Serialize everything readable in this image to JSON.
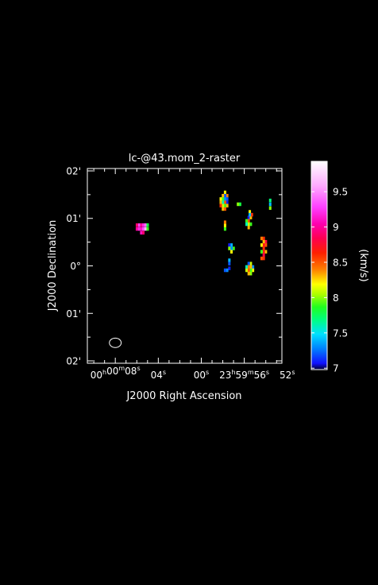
{
  "chart_data": {
    "type": "heatmap",
    "title": "lc-@43.mom_2-raster",
    "xlabel": "J2000 Right Ascension",
    "ylabel": "J2000 Declination",
    "colorbar": {
      "label": "(km/s)",
      "range": [
        6.98,
        9.93
      ],
      "ticks": [
        "7",
        "7.5",
        "8",
        "8.5",
        "9",
        "9.5"
      ],
      "tick_values": [
        7.0,
        7.5,
        8.0,
        8.5,
        9.0,
        9.5
      ]
    },
    "x_ticks": [
      {
        "h": "00",
        "m": "00",
        "s": "08",
        "sec_offset": 8
      },
      {
        "h": "",
        "m": "",
        "s": "04",
        "sec_offset": 4
      },
      {
        "h": "",
        "m": "",
        "s": "00",
        "sec_offset": 0
      },
      {
        "h": "23",
        "m": "59",
        "s": "56",
        "sec_offset": -4
      },
      {
        "h": "",
        "m": "",
        "s": "52",
        "sec_offset": -8
      }
    ],
    "y_ticks": [
      "02'",
      "01'",
      "0°",
      "01'",
      "02'"
    ],
    "y_tick_values": [
      2,
      1,
      0,
      -1,
      -2
    ],
    "xlim_sec": [
      10.6,
      -7.5
    ],
    "ylim_arcmin": [
      -2.05,
      2.05
    ],
    "pixels": [
      [
        5.8,
        0.86,
        9.3
      ],
      [
        5.6,
        0.86,
        9.0
      ],
      [
        5.4,
        0.86,
        9.2
      ],
      [
        5.2,
        0.86,
        9.4
      ],
      [
        6.0,
        0.86,
        8.9
      ],
      [
        5.0,
        0.86,
        7.8
      ],
      [
        6.0,
        0.78,
        9.0
      ],
      [
        5.8,
        0.78,
        9.2
      ],
      [
        5.6,
        0.78,
        9.1
      ],
      [
        5.4,
        0.78,
        9.3
      ],
      [
        5.2,
        0.78,
        9.6
      ],
      [
        5.0,
        0.78,
        7.9
      ],
      [
        5.6,
        0.7,
        9.1
      ],
      [
        5.4,
        0.7,
        8.9
      ],
      [
        -2.2,
        1.55,
        8.2
      ],
      [
        -2.4,
        1.48,
        8.4
      ],
      [
        -2.2,
        1.48,
        7.2
      ],
      [
        -2.0,
        1.48,
        8.3
      ],
      [
        -2.4,
        1.41,
        7.2
      ],
      [
        -2.2,
        1.41,
        7.3
      ],
      [
        -2.0,
        1.41,
        7.9
      ],
      [
        -1.8,
        1.41,
        8.2
      ],
      [
        -2.4,
        1.34,
        7.1
      ],
      [
        -2.2,
        1.34,
        8.5
      ],
      [
        -2.0,
        1.34,
        7.6
      ],
      [
        -1.8,
        1.34,
        8.3
      ],
      [
        -2.4,
        1.27,
        8.3
      ],
      [
        -2.2,
        1.27,
        7.9
      ],
      [
        -2.0,
        1.27,
        8.1
      ],
      [
        -1.8,
        1.27,
        8.6
      ],
      [
        -2.2,
        1.2,
        8.5
      ],
      [
        -2.0,
        1.2,
        8.3
      ],
      [
        -4.4,
        1.02,
        7.1
      ],
      [
        -4.6,
        1.02,
        8.3
      ],
      [
        -4.4,
        0.95,
        8.5
      ],
      [
        -4.2,
        0.95,
        7.9
      ],
      [
        -4.4,
        0.88,
        8.1
      ],
      [
        -4.6,
        0.88,
        7.9
      ],
      [
        -4.2,
        0.88,
        7.6
      ],
      [
        -4.4,
        0.81,
        8.3
      ],
      [
        -3.6,
        1.3,
        7.8
      ],
      [
        -3.4,
        1.3,
        8.0
      ],
      [
        -4.5,
        1.14,
        8.2
      ],
      [
        -4.7,
        1.08,
        8.6
      ],
      [
        -4.5,
        1.08,
        7.4
      ],
      [
        -6.4,
        1.38,
        7.7
      ],
      [
        -6.4,
        1.3,
        7.4
      ],
      [
        -6.4,
        1.22,
        8.0
      ],
      [
        -2.2,
        0.92,
        8.4
      ],
      [
        -2.2,
        0.85,
        8.2
      ],
      [
        -2.2,
        0.78,
        7.9
      ],
      [
        -5.8,
        0.58,
        8.6
      ],
      [
        -5.6,
        0.58,
        8.4
      ],
      [
        -6.0,
        0.51,
        8.8
      ],
      [
        -5.8,
        0.51,
        8.3
      ],
      [
        -6.0,
        0.44,
        8.5
      ],
      [
        -5.8,
        0.44,
        8.7
      ],
      [
        -5.6,
        0.44,
        8.2
      ],
      [
        -5.8,
        0.37,
        8.6
      ],
      [
        -6.0,
        0.3,
        8.3
      ],
      [
        -5.8,
        0.3,
        8.7
      ],
      [
        -5.6,
        0.3,
        7.9
      ],
      [
        -5.8,
        0.23,
        8.8
      ],
      [
        -5.6,
        0.16,
        8.5
      ],
      [
        -5.8,
        0.16,
        8.6
      ],
      [
        -2.8,
        0.44,
        7.4
      ],
      [
        -2.6,
        0.44,
        7.1
      ],
      [
        -3.0,
        0.37,
        7.9
      ],
      [
        -2.8,
        0.37,
        7.3
      ],
      [
        -2.6,
        0.37,
        8.0
      ],
      [
        -2.8,
        0.3,
        8.2
      ],
      [
        -4.6,
        0.05,
        8.1
      ],
      [
        -4.4,
        0.05,
        7.2
      ],
      [
        -4.8,
        -0.02,
        7.3
      ],
      [
        -4.6,
        -0.02,
        8.3
      ],
      [
        -4.4,
        -0.02,
        8.4
      ],
      [
        -4.2,
        -0.02,
        7.6
      ],
      [
        -4.8,
        -0.09,
        8.2
      ],
      [
        -4.6,
        -0.09,
        7.9
      ],
      [
        -4.4,
        -0.09,
        8.5
      ],
      [
        -4.2,
        -0.09,
        8.1
      ],
      [
        -4.6,
        -0.16,
        8.0
      ],
      [
        -4.4,
        -0.16,
        8.3
      ],
      [
        -2.6,
        0.12,
        7.4
      ],
      [
        -2.6,
        0.05,
        7.2
      ],
      [
        -2.6,
        -0.05,
        7.1
      ],
      [
        -2.4,
        -0.09,
        7.3
      ],
      [
        -2.2,
        -0.09,
        7.2
      ]
    ],
    "beam": {
      "center_sec": 8.0,
      "center_arcmin": -1.62,
      "radius_sec": 0.55,
      "radius_arcmin": 0.1
    }
  }
}
